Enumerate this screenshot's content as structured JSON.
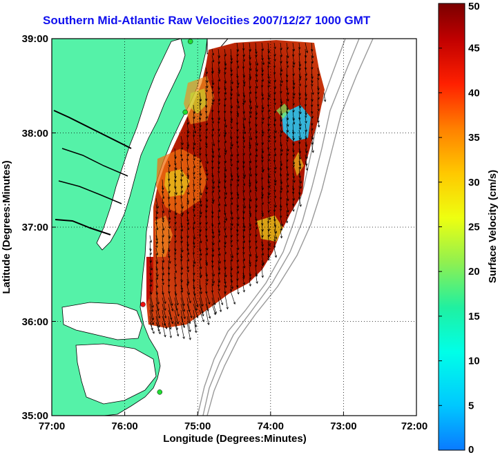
{
  "title": "Southern Mid-Atlantic Raw Velocities 2007/12/27 1000 GMT",
  "xlabel": "Longitude (Degrees:Minutes)",
  "ylabel": "Latitude (Degrees:Minutes)",
  "x_ticks": [
    "77:00",
    "76:00",
    "75:00",
    "74:00",
    "73:00",
    "72:00"
  ],
  "y_ticks": [
    "39:00",
    "38:00",
    "37:00",
    "36:00",
    "35:00"
  ],
  "colorbar": {
    "label": "Surface Velocity (cm/s)",
    "ticks": [
      "50",
      "45",
      "40",
      "35",
      "30",
      "25",
      "20",
      "15",
      "10",
      "5",
      "0"
    ],
    "min": 0,
    "max": 50
  },
  "colors": {
    "land": "#55f2a8",
    "title": "#1010ee",
    "coastline": "#000000",
    "bathymetry": "#888888",
    "grid": "#000000",
    "station_green": "#22dd33",
    "station_red": "#ee1111"
  },
  "map_extent": {
    "lon_min": -77,
    "lon_max": -72,
    "lat_min": 35,
    "lat_max": 39
  },
  "grid": "dotted",
  "stations": [
    {
      "color": "green",
      "lon": -75.1,
      "lat": 38.97
    },
    {
      "color": "green",
      "lon": -75.17,
      "lat": 38.22
    },
    {
      "color": "red",
      "lon": -75.75,
      "lat": 36.18
    },
    {
      "color": "green",
      "lon": -75.52,
      "lat": 35.25
    }
  ]
}
